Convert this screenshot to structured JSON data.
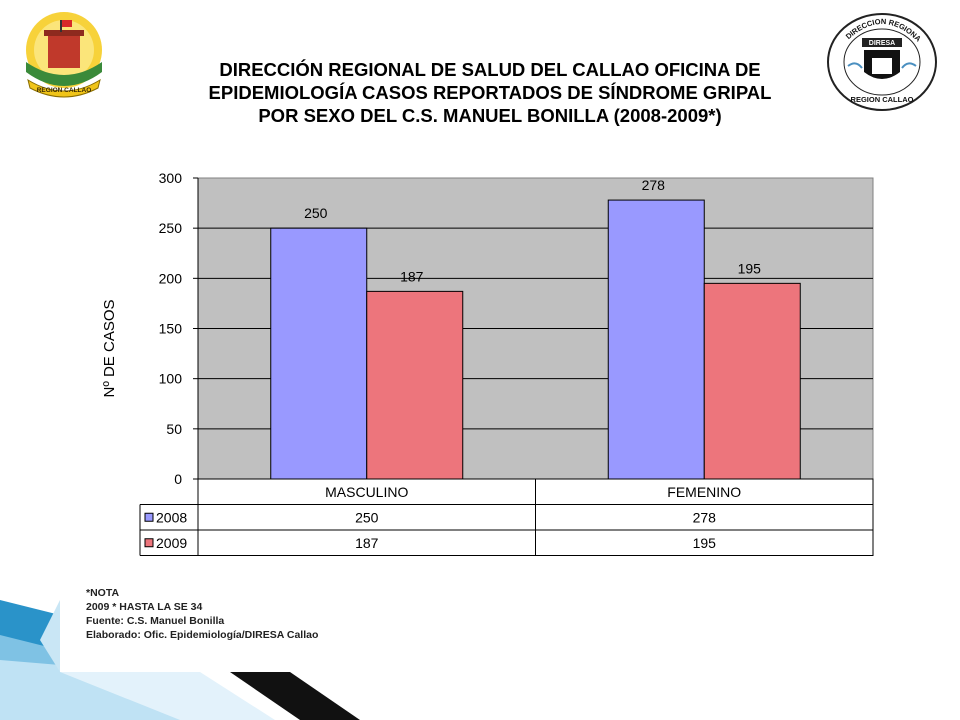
{
  "header": {
    "title_lines": [
      "DIRECCIÓN REGIONAL DE SALUD DEL CALLAO OFICINA DE",
      "EPIDEMIOLOGÍA CASOS REPORTADOS DE SÍNDROME GRIPAL",
      "POR SEXO DEL  C.S. MANUEL BONILLA (2008-2009*)"
    ]
  },
  "logos": {
    "left": {
      "text": "REGION CALLAO",
      "icon": "region-callao-castle-emblem"
    },
    "right": {
      "text": "DIRECCION REGIONAL DE SALUD",
      "text2": "REGION CALLAO",
      "badge": "DIRESA",
      "icon": "diresa-callao-seal"
    }
  },
  "chart_data": {
    "type": "bar",
    "title": "",
    "xlabel": "",
    "ylabel": "Nº DE CASOS",
    "categories": [
      "MASCULINO",
      "FEMENINO"
    ],
    "series": [
      {
        "name": "2008",
        "values": [
          250,
          278
        ],
        "color": "#9999ff"
      },
      {
        "name": "2009",
        "values": [
          187,
          195
        ],
        "color": "#ed757c"
      }
    ],
    "ylim": [
      0,
      300
    ],
    "yticks": [
      0,
      50,
      100,
      150,
      200,
      250,
      300
    ],
    "grid": true,
    "legend": "data-table",
    "plot_background": "#c0c0c0"
  },
  "notes": [
    "*NOTA",
    "2009 * HASTA LA  SE  34",
    "Fuente: C.S. Manuel Bonilla",
    "Elaborado: Ofic. Epidemiología/DIRESA Callao"
  ],
  "colors": {
    "accent_blue": "#2a93c9",
    "light_blue": "#a9d6ee",
    "dark_stripe": "#111111"
  }
}
